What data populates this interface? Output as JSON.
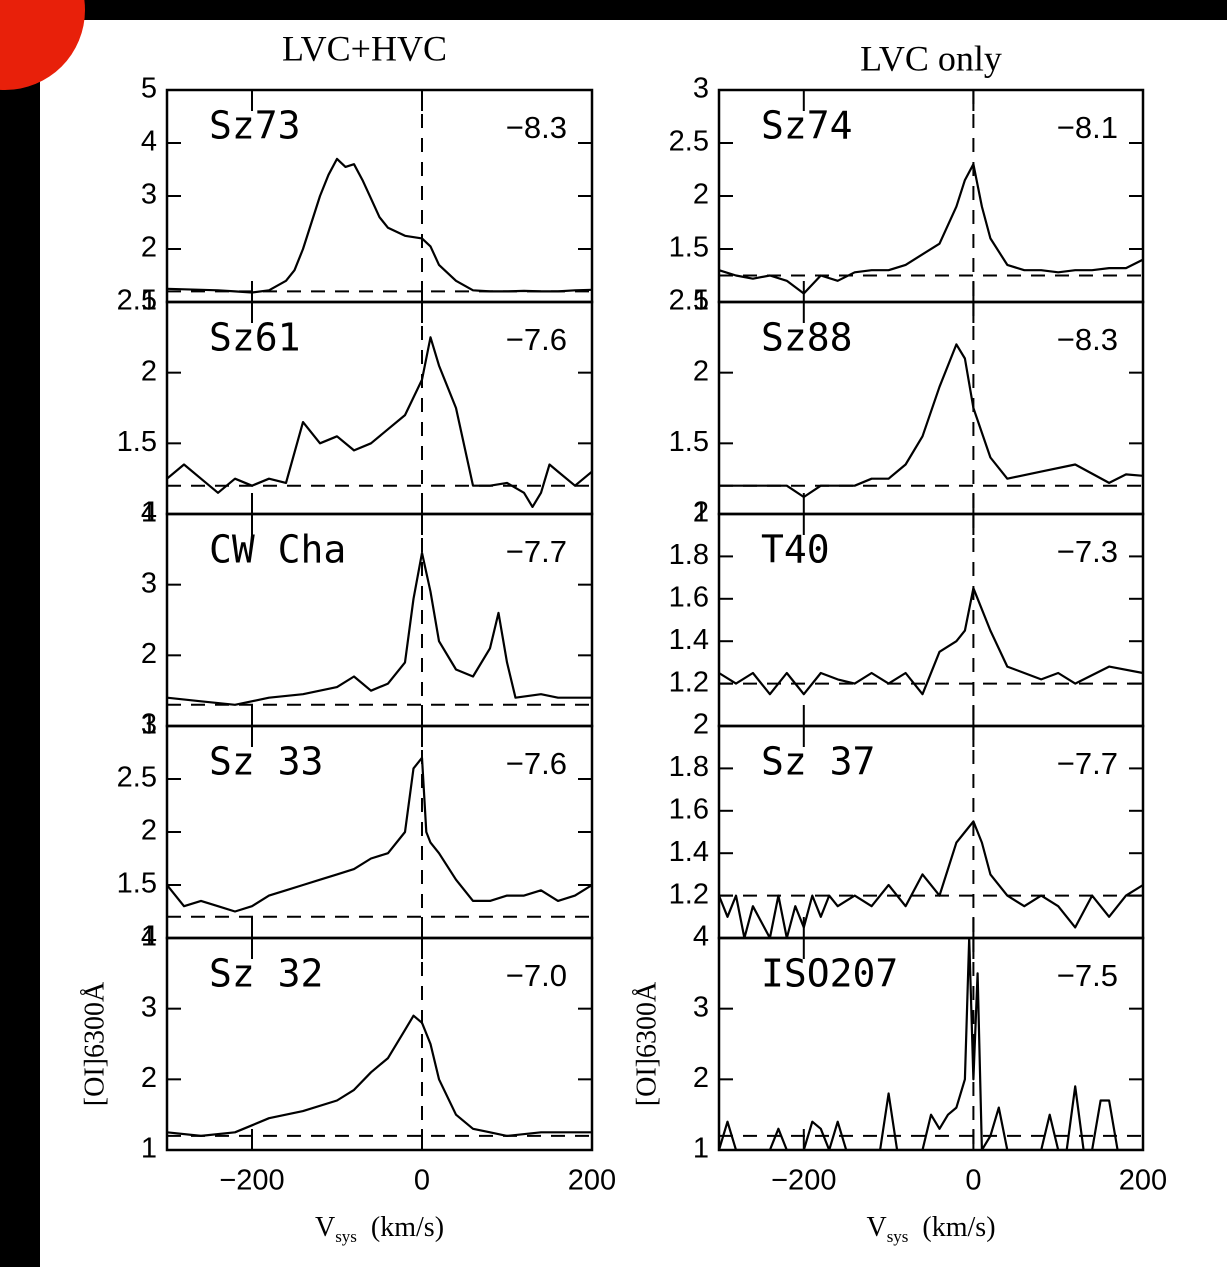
{
  "chart_data": [
    {
      "type": "line",
      "title": "LVC+HVC",
      "label": "Sz73",
      "annotation": "−8.3",
      "x": [
        -300,
        -280,
        -260,
        -240,
        -220,
        -200,
        -180,
        -160,
        -150,
        -140,
        -130,
        -120,
        -110,
        -100,
        -90,
        -80,
        -70,
        -60,
        -50,
        -40,
        -20,
        0,
        10,
        20,
        40,
        60,
        80,
        100,
        120,
        140,
        160,
        180,
        200
      ],
      "values": [
        1.25,
        1.24,
        1.23,
        1.22,
        1.2,
        1.18,
        1.22,
        1.4,
        1.6,
        2.0,
        2.5,
        3.0,
        3.4,
        3.7,
        3.55,
        3.6,
        3.3,
        2.95,
        2.6,
        2.4,
        2.25,
        2.2,
        2.05,
        1.7,
        1.4,
        1.22,
        1.2,
        1.2,
        1.21,
        1.2,
        1.2,
        1.22,
        1.23
      ],
      "xlim": [
        -300,
        200
      ],
      "xticks": [
        {
          "value": -200,
          "label": "−200"
        },
        0,
        200
      ],
      "ylim": [
        1,
        5
      ],
      "yticks": [
        1,
        2,
        3,
        4,
        5
      ],
      "hline": 1.2,
      "vline": 0,
      "color": "#000000"
    },
    {
      "type": "line",
      "label": "Sz61",
      "annotation": "−7.6",
      "x": [
        -300,
        -280,
        -260,
        -240,
        -220,
        -200,
        -180,
        -160,
        -140,
        -120,
        -100,
        -80,
        -60,
        -40,
        -20,
        0,
        10,
        20,
        40,
        60,
        80,
        100,
        120,
        130,
        140,
        150,
        160,
        180,
        200
      ],
      "values": [
        1.25,
        1.35,
        1.25,
        1.15,
        1.25,
        1.2,
        1.25,
        1.22,
        1.65,
        1.5,
        1.55,
        1.45,
        1.5,
        1.6,
        1.7,
        1.95,
        2.25,
        2.05,
        1.75,
        1.2,
        1.2,
        1.22,
        1.15,
        1.05,
        1.15,
        1.35,
        1.3,
        1.2,
        1.3
      ],
      "xlim": [
        -300,
        200
      ],
      "xticks": [
        {
          "value": -200,
          "label": "−200"
        },
        0,
        200
      ],
      "ylim": [
        1,
        2.5
      ],
      "yticks": [
        1,
        1.5,
        2,
        2.5
      ],
      "hline": 1.2,
      "vline": 0,
      "color": "#000000"
    },
    {
      "type": "line",
      "label": "CW Cha",
      "annotation": "−7.7",
      "x": [
        -300,
        -260,
        -220,
        -180,
        -140,
        -100,
        -80,
        -60,
        -40,
        -20,
        -10,
        0,
        10,
        20,
        40,
        60,
        80,
        90,
        100,
        110,
        140,
        160,
        200
      ],
      "values": [
        1.4,
        1.35,
        1.3,
        1.4,
        1.45,
        1.55,
        1.7,
        1.5,
        1.6,
        1.9,
        2.8,
        3.45,
        2.9,
        2.2,
        1.8,
        1.7,
        2.1,
        2.6,
        1.9,
        1.4,
        1.45,
        1.4,
        1.4
      ],
      "xlim": [
        -300,
        200
      ],
      "xticks": [
        {
          "value": -200,
          "label": "−200"
        },
        0,
        200
      ],
      "ylim": [
        1,
        4
      ],
      "yticks": [
        1,
        2,
        3,
        4
      ],
      "hline": 1.3,
      "vline": 0,
      "color": "#000000"
    },
    {
      "type": "line",
      "label": "Sz 33",
      "annotation": "−7.6",
      "x": [
        -300,
        -280,
        -260,
        -240,
        -220,
        -200,
        -180,
        -160,
        -140,
        -120,
        -100,
        -80,
        -60,
        -40,
        -20,
        -10,
        0,
        5,
        10,
        20,
        40,
        60,
        80,
        100,
        120,
        140,
        160,
        180,
        200
      ],
      "values": [
        1.5,
        1.3,
        1.35,
        1.3,
        1.25,
        1.3,
        1.4,
        1.45,
        1.5,
        1.55,
        1.6,
        1.65,
        1.75,
        1.8,
        2.0,
        2.6,
        2.7,
        2.0,
        1.9,
        1.8,
        1.55,
        1.35,
        1.35,
        1.4,
        1.4,
        1.45,
        1.35,
        1.4,
        1.5
      ],
      "xlim": [
        -300,
        200
      ],
      "xticks": [
        {
          "value": -200,
          "label": "−200"
        },
        0,
        200
      ],
      "ylim": [
        1,
        3
      ],
      "yticks": [
        1,
        1.5,
        2,
        2.5,
        3
      ],
      "hline": 1.2,
      "vline": 0,
      "color": "#000000"
    },
    {
      "type": "line",
      "label": "Sz 32",
      "annotation": "−7.0",
      "ylabel": "[OI]6300Å",
      "xlabel": [
        "V",
        "sys",
        "(km/s)"
      ],
      "x": [
        -300,
        -260,
        -220,
        -200,
        -180,
        -140,
        -100,
        -80,
        -60,
        -40,
        -20,
        -10,
        0,
        10,
        20,
        40,
        60,
        80,
        100,
        140,
        200
      ],
      "values": [
        1.25,
        1.2,
        1.25,
        1.35,
        1.45,
        1.55,
        1.7,
        1.85,
        2.1,
        2.3,
        2.7,
        2.9,
        2.8,
        2.5,
        2.0,
        1.5,
        1.3,
        1.25,
        1.2,
        1.25,
        1.25
      ],
      "xlim": [
        -300,
        200
      ],
      "xticks": [
        {
          "value": -200,
          "label": "−200"
        },
        0,
        200
      ],
      "ylim": [
        1,
        4
      ],
      "yticks": [
        1,
        2,
        3,
        4
      ],
      "hline": 1.2,
      "vline": 0,
      "color": "#000000"
    },
    {
      "type": "line",
      "title": "LVC only",
      "label": "Sz74",
      "annotation": "−8.1",
      "x": [
        -300,
        -280,
        -260,
        -240,
        -220,
        -200,
        -180,
        -160,
        -140,
        -120,
        -100,
        -80,
        -60,
        -40,
        -20,
        -10,
        0,
        10,
        20,
        40,
        60,
        80,
        100,
        120,
        140,
        160,
        180,
        200
      ],
      "values": [
        1.3,
        1.25,
        1.22,
        1.25,
        1.2,
        1.08,
        1.25,
        1.2,
        1.28,
        1.3,
        1.3,
        1.35,
        1.45,
        1.55,
        1.9,
        2.15,
        2.3,
        1.9,
        1.6,
        1.35,
        1.3,
        1.3,
        1.28,
        1.3,
        1.3,
        1.32,
        1.32,
        1.4
      ],
      "xlim": [
        -300,
        200
      ],
      "xticks": [
        {
          "value": -200,
          "label": "−200"
        },
        0,
        200
      ],
      "ylim": [
        1,
        3
      ],
      "yticks": [
        1,
        1.5,
        2,
        2.5,
        3
      ],
      "hline": 1.25,
      "vline": 0,
      "color": "#000000"
    },
    {
      "type": "line",
      "label": "Sz88",
      "annotation": "−8.3",
      "x": [
        -300,
        -260,
        -220,
        -200,
        -180,
        -140,
        -120,
        -100,
        -80,
        -60,
        -40,
        -20,
        -10,
        0,
        20,
        40,
        80,
        120,
        160,
        180,
        200
      ],
      "values": [
        1.2,
        1.2,
        1.2,
        1.12,
        1.2,
        1.2,
        1.25,
        1.25,
        1.35,
        1.55,
        1.9,
        2.2,
        2.1,
        1.75,
        1.4,
        1.25,
        1.3,
        1.35,
        1.22,
        1.28,
        1.27
      ],
      "xlim": [
        -300,
        200
      ],
      "xticks": [
        {
          "value": -200,
          "label": "−200"
        },
        0,
        200
      ],
      "ylim": [
        1,
        2.5
      ],
      "yticks": [
        1,
        1.5,
        2,
        2.5
      ],
      "hline": 1.2,
      "vline": 0,
      "color": "#000000"
    },
    {
      "type": "line",
      "label": "T40",
      "annotation": "−7.3",
      "x": [
        -300,
        -280,
        -260,
        -240,
        -220,
        -200,
        -180,
        -160,
        -140,
        -120,
        -100,
        -80,
        -60,
        -40,
        -20,
        -10,
        0,
        20,
        40,
        60,
        80,
        100,
        120,
        160,
        200
      ],
      "values": [
        1.25,
        1.2,
        1.25,
        1.15,
        1.25,
        1.15,
        1.25,
        1.22,
        1.2,
        1.25,
        1.2,
        1.25,
        1.15,
        1.35,
        1.4,
        1.45,
        1.65,
        1.45,
        1.28,
        1.25,
        1.22,
        1.25,
        1.2,
        1.28,
        1.25
      ],
      "xlim": [
        -300,
        200
      ],
      "xticks": [
        {
          "value": -200,
          "label": "−200"
        },
        0,
        200
      ],
      "ylim": [
        1,
        2
      ],
      "yticks": [
        1.2,
        1.4,
        1.6,
        1.8,
        2
      ],
      "hline": 1.2,
      "vline": 0,
      "color": "#000000"
    },
    {
      "type": "line",
      "label": "Sz 37",
      "annotation": "−7.7",
      "x": [
        -300,
        -290,
        -280,
        -270,
        -260,
        -240,
        -230,
        -220,
        -210,
        -200,
        -190,
        -180,
        -170,
        -160,
        -140,
        -120,
        -100,
        -80,
        -60,
        -40,
        -20,
        -10,
        0,
        10,
        20,
        40,
        60,
        80,
        100,
        120,
        140,
        160,
        180,
        200
      ],
      "values": [
        1.2,
        1.1,
        1.2,
        1.0,
        1.15,
        1.0,
        1.2,
        1.0,
        1.15,
        1.05,
        1.2,
        1.1,
        1.2,
        1.15,
        1.2,
        1.15,
        1.25,
        1.15,
        1.3,
        1.2,
        1.45,
        1.5,
        1.55,
        1.45,
        1.3,
        1.2,
        1.15,
        1.2,
        1.15,
        1.05,
        1.2,
        1.1,
        1.2,
        1.25
      ],
      "xlim": [
        -300,
        200
      ],
      "xticks": [
        {
          "value": -200,
          "label": "−200"
        },
        0,
        200
      ],
      "ylim": [
        1,
        2
      ],
      "yticks": [
        1.2,
        1.4,
        1.6,
        1.8,
        2
      ],
      "hline": 1.2,
      "vline": 0,
      "color": "#000000"
    },
    {
      "type": "line",
      "label": "ISO207",
      "annotation": "−7.5",
      "ylabel": "[OI]6300Å",
      "xlabel": [
        "V",
        "sys",
        "(km/s)"
      ],
      "x": [
        -300,
        -290,
        -280,
        -240,
        -230,
        -220,
        -200,
        -190,
        -180,
        -170,
        -160,
        -150,
        -110,
        -100,
        -90,
        -60,
        -50,
        -40,
        -30,
        -20,
        -10,
        -5,
        0,
        5,
        10,
        20,
        30,
        40,
        80,
        90,
        100,
        110,
        120,
        130,
        140,
        150,
        160,
        170,
        200
      ],
      "values": [
        1.0,
        1.4,
        1.0,
        1.0,
        1.3,
        1.0,
        1.0,
        1.4,
        1.3,
        1.0,
        1.4,
        1.0,
        1.0,
        1.8,
        1.0,
        1.0,
        1.5,
        1.3,
        1.5,
        1.6,
        2.0,
        4.0,
        2.0,
        3.5,
        1.0,
        1.2,
        1.6,
        1.0,
        1.0,
        1.5,
        1.0,
        1.0,
        1.9,
        1.0,
        1.0,
        1.7,
        1.7,
        1.0,
        1.0
      ],
      "xlim": [
        -300,
        200
      ],
      "xticks": [
        {
          "value": -200,
          "label": "−200"
        },
        0,
        200
      ],
      "ylim": [
        1,
        4
      ],
      "yticks": [
        1,
        2,
        3,
        4
      ],
      "hline": 1.2,
      "vline": 0,
      "color": "#000000"
    }
  ]
}
